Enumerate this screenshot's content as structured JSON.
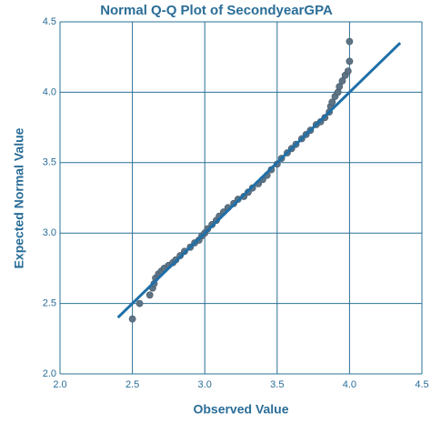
{
  "chart_data": {
    "type": "scatter",
    "title": "Normal Q-Q Plot of SecondyearGPA",
    "x_label": "Observed Value",
    "y_label": "Expected Normal Value",
    "xlim": [
      2.0,
      4.5
    ],
    "ylim": [
      2.0,
      4.5
    ],
    "xticks": [
      {
        "value": 2,
        "label": "2.0"
      },
      2.5,
      {
        "value": 3,
        "label": "3.0"
      },
      3.5,
      {
        "value": 4,
        "label": "4.0"
      },
      4.5
    ],
    "yticks": [
      {
        "value": 2,
        "label": "2.0"
      },
      2.5,
      {
        "value": 3,
        "label": "3.0"
      },
      3.5,
      {
        "value": 4,
        "label": "4.0"
      },
      4.5
    ],
    "grid": true,
    "series": [
      {
        "type": "scatter",
        "color": "#5e7384",
        "x": [
          2.5,
          2.55,
          2.62,
          2.64,
          2.65,
          2.66,
          2.68,
          2.7,
          2.72,
          2.75,
          2.78,
          2.8,
          2.83,
          2.86,
          2.9,
          2.93,
          2.96,
          2.98,
          3.0,
          3.02,
          3.05,
          3.08,
          3.1,
          3.13,
          3.16,
          3.2,
          3.23,
          3.27,
          3.3,
          3.33,
          3.37,
          3.4,
          3.43,
          3.46,
          3.5,
          3.53,
          3.57,
          3.6,
          3.63,
          3.67,
          3.7,
          3.73,
          3.77,
          3.8,
          3.83,
          3.86,
          3.87,
          3.88,
          3.9,
          3.92,
          3.93,
          3.95,
          3.97,
          3.99,
          4.0,
          4.0
        ],
        "values": [
          2.39,
          2.5,
          2.56,
          2.61,
          2.64,
          2.68,
          2.71,
          2.73,
          2.75,
          2.77,
          2.79,
          2.81,
          2.84,
          2.87,
          2.9,
          2.93,
          2.95,
          2.98,
          3.0,
          3.03,
          3.06,
          3.09,
          3.12,
          3.15,
          3.18,
          3.21,
          3.24,
          3.26,
          3.29,
          3.32,
          3.35,
          3.38,
          3.41,
          3.45,
          3.49,
          3.53,
          3.57,
          3.6,
          3.63,
          3.67,
          3.7,
          3.73,
          3.77,
          3.79,
          3.82,
          3.86,
          3.9,
          3.93,
          3.97,
          4.0,
          4.04,
          4.08,
          4.12,
          4.15,
          4.22,
          4.36
        ]
      },
      {
        "type": "line",
        "color": "#1f6fa8",
        "x": [
          2.4,
          4.35
        ],
        "values": [
          2.4,
          4.35
        ]
      }
    ]
  }
}
